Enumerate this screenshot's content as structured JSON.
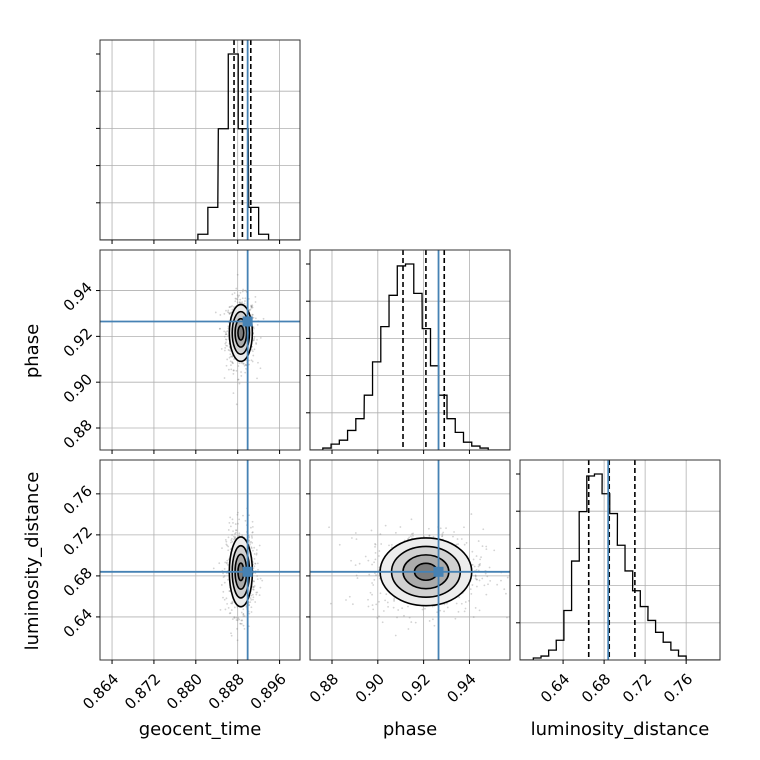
{
  "chart_data": {
    "type": "corner",
    "parameters": [
      "geocent_time",
      "phase",
      "luminosity_distance"
    ],
    "axis_labels": [
      "geocent_time",
      "phase",
      "luminosity_distance"
    ],
    "ranges": {
      "geocent_time": [
        0.8617,
        0.8999
      ],
      "phase": [
        0.8704,
        0.9577
      ],
      "luminosity_distance": [
        0.598,
        0.793
      ]
    },
    "ticks": {
      "geocent_time": {
        "values": [
          0.864,
          0.872,
          0.88,
          0.888,
          0.896
        ],
        "labels": [
          "0.864",
          "0.872",
          "0.880",
          "0.888",
          "0.896"
        ]
      },
      "phase": {
        "values": [
          0.88,
          0.9,
          0.92,
          0.94
        ],
        "labels": [
          "0.88",
          "0.90",
          "0.92",
          "0.94"
        ]
      },
      "luminosity_distance": {
        "values": [
          0.64,
          0.68,
          0.72,
          0.76
        ],
        "labels": [
          "0.64",
          "0.68",
          "0.72",
          "0.76"
        ]
      }
    },
    "truths": {
      "geocent_time": 0.8899,
      "phase": 0.9265,
      "luminosity_distance": 0.684
    },
    "quantiles": {
      "geocent_time": [
        0.8873,
        0.8889,
        0.8905
      ],
      "phase": [
        0.911,
        0.921,
        0.929
      ],
      "luminosity_distance": [
        0.665,
        0.685,
        0.71
      ]
    },
    "marginals": {
      "geocent_time": {
        "bins": [
          0.8804,
          0.8823,
          0.8843,
          0.8862,
          0.8881,
          0.8901,
          0.892
        ],
        "counts": [
          0.03,
          0.17,
          0.58,
          0.97,
          0.58,
          0.17,
          0.03
        ]
      },
      "phase": {
        "bins": [
          0.876,
          0.8796,
          0.8832,
          0.8868,
          0.8904,
          0.8941,
          0.8977,
          0.9013,
          0.9049,
          0.9085,
          0.9121,
          0.9157,
          0.9194,
          0.923,
          0.9266,
          0.9302,
          0.9338,
          0.9374,
          0.941,
          0.9446
        ],
        "counts": [
          0.01,
          0.03,
          0.05,
          0.1,
          0.16,
          0.28,
          0.45,
          0.63,
          0.79,
          0.94,
          0.95,
          0.8,
          0.62,
          0.43,
          0.28,
          0.16,
          0.09,
          0.04,
          0.02,
          0.01
        ]
      },
      "luminosity_distance": {
        "bins": [
          0.611,
          0.6185,
          0.6259,
          0.6333,
          0.6408,
          0.6483,
          0.6557,
          0.6631,
          0.6706,
          0.678,
          0.6855,
          0.6929,
          0.7004,
          0.7078,
          0.7153,
          0.7227,
          0.7302,
          0.7376,
          0.7451,
          0.7525
        ],
        "counts": [
          0.01,
          0.02,
          0.05,
          0.1,
          0.25,
          0.5,
          0.75,
          0.93,
          0.94,
          0.84,
          0.74,
          0.58,
          0.45,
          0.35,
          0.27,
          0.2,
          0.14,
          0.09,
          0.05,
          0.02
        ]
      }
    },
    "contours_2d": {
      "phase_vs_geocent_time": {
        "center": [
          0.8886,
          0.9215
        ],
        "sigma": [
          0.0011,
          0.0062
        ]
      },
      "luminosity_distance_vs_geocent_time": {
        "center": [
          0.8886,
          0.684
        ],
        "sigma": [
          0.0011,
          0.017
        ]
      },
      "luminosity_distance_vs_phase": {
        "center": [
          0.921,
          0.684
        ],
        "sigma": [
          0.01,
          0.0165
        ]
      }
    },
    "contour_levels_sigma": [
      0.5,
      1.0,
      1.5,
      2.0
    ],
    "grid": true,
    "colors": {
      "truth": "#4682b4",
      "hist": "#000000",
      "quantile": "#000000",
      "grid": "#b0b0b0",
      "points": "#808080"
    }
  }
}
